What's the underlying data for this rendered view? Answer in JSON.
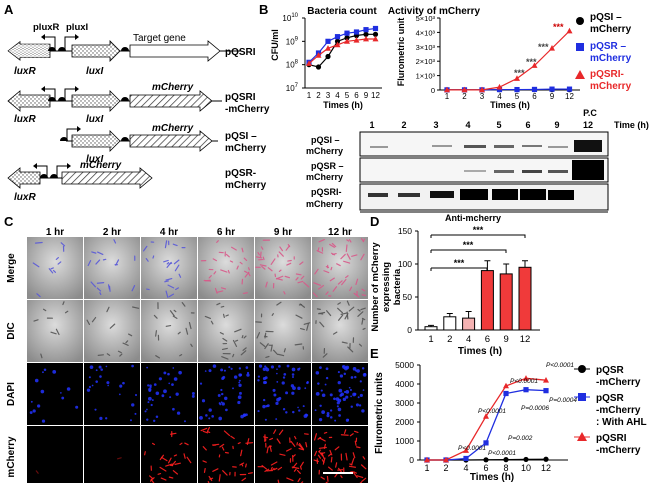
{
  "panel_letters": {
    "a": "A",
    "b": "B",
    "c": "C",
    "d": "D",
    "e": "E"
  },
  "panel_a": {
    "constructs": [
      {
        "label": "pQSRI",
        "genes": [
          "luxR",
          "luxI",
          "Target gene"
        ],
        "promoters": [
          "pluxR",
          "pluxI"
        ]
      },
      {
        "label": "pQSRI\n-mCherry",
        "genes": [
          "luxR",
          "luxI",
          "mCherry"
        ]
      },
      {
        "label": "pQSI –\nmCherry",
        "genes": [
          "luxI",
          "mCherry"
        ]
      },
      {
        "label": "pQSR-\nmCherry",
        "genes": [
          "luxR",
          "mCherry"
        ]
      }
    ],
    "text": {
      "pluxR": "pluxR",
      "pluxI": "pluxI",
      "luxR": "luxR",
      "luxI": "luxI",
      "target": "Target gene",
      "mcherry": "mCherry",
      "c1": "pQSRI",
      "c2a": "pQSRI",
      "c2b": "-mCherry",
      "c3a": "pQSI –",
      "c3b": "mCherry",
      "c4a": "pQSR-",
      "c4b": "mCherry"
    }
  },
  "panel_b": {
    "bacteria_title": "Bacteria count",
    "bacteria_ylabel": "CFU/ml",
    "activity_title": "Activity of mCherry",
    "activity_ylabel": "Flurometric unit",
    "xlabel": "Times (h)",
    "legend": [
      "pQSI –\nmCherry",
      "pQSR –\nmCherry",
      "pQSRI-\nmCherry"
    ],
    "legend_lines": {
      "l1a": "pQSI –",
      "l1b": "mCherry",
      "l2a": "pQSR –",
      "l2b": "mCherry",
      "l3a": "pQSRI-",
      "l3b": "mCherry"
    },
    "blot_lanes": [
      "1",
      "2",
      "3",
      "4",
      "5",
      "6",
      "9",
      "12",
      "P.C"
    ],
    "blot_time_label": "Time (h)",
    "blot_rows": [
      {
        "a": "pQSI –",
        "b": "mCherry"
      },
      {
        "a": "pQSR –",
        "b": "mCherry"
      },
      {
        "a": "pQSRI-",
        "b": "mCherry"
      }
    ],
    "blot_antibody": "Anti-mcherry",
    "sig": "***"
  },
  "panel_c": {
    "columns": [
      "1 hr",
      "2 hr",
      "4 hr",
      "6 hr",
      "9 hr",
      "12 hr"
    ],
    "rows": [
      "Merge",
      "DIC",
      "DAPI",
      "mCherry"
    ]
  },
  "panel_d": {
    "ylabel_lines": [
      "Number of mCherry",
      "expressing",
      "bacteria"
    ],
    "xlabel": "Times (h)",
    "sig": [
      "***",
      "***",
      "***"
    ]
  },
  "panel_e": {
    "ylabel": "Flurometric units",
    "xlabel": "Times (h)",
    "legend_lines": {
      "l1a": "pQSR",
      "l1b": "-mCherry",
      "l2a": "pQSR",
      "l2b": "-mCherry",
      "l2c": ": With AHL",
      "l3a": "pQSRI",
      "l3b": "-mCherry"
    },
    "pvalues": [
      "P<0.0001",
      "P<0.0001",
      "P<0.0001",
      "P=0.0006",
      "P=0.0004",
      "P=0.002",
      "P<0.0001",
      "P<0.0001"
    ]
  },
  "colors": {
    "black": "#000000",
    "blue": "#1f2ee0",
    "red": "#e8282a",
    "bar_red": "#f03a3a",
    "bar_pink": "#f5b3b3"
  },
  "chart_data": [
    {
      "type": "line",
      "title": "Bacteria count",
      "xlabel": "Times (h)",
      "ylabel": "CFU/ml",
      "categories": [
        "1",
        "2",
        "3",
        "4",
        "5",
        "6",
        "9",
        "12"
      ],
      "yscale": "log",
      "ylim_exp": [
        7,
        10
      ],
      "series": [
        {
          "name": "pQSI –mCherry",
          "color": "#000000",
          "log10_values": [
            8.0,
            7.9,
            8.35,
            9.0,
            9.15,
            9.25,
            9.3,
            9.3
          ]
        },
        {
          "name": "pQSR –mCherry",
          "color": "#1f2ee0",
          "log10_values": [
            8.1,
            8.5,
            9.0,
            9.2,
            9.35,
            9.4,
            9.5,
            9.55
          ]
        },
        {
          "name": "pQSRI-mCherry",
          "color": "#e8282a",
          "log10_values": [
            8.05,
            8.4,
            8.7,
            8.85,
            9.0,
            9.05,
            9.1,
            9.1
          ]
        }
      ]
    },
    {
      "type": "line",
      "title": "Activity of mCherry",
      "xlabel": "Times (h)",
      "ylabel": "Flurometric unit",
      "categories": [
        "1",
        "2",
        "3",
        "4",
        "5",
        "6",
        "9",
        "12"
      ],
      "yticks": [
        "0",
        "1×10³",
        "2×10³",
        "3×10³",
        "4×10³",
        "5×10³"
      ],
      "ylim": [
        0,
        5000
      ],
      "series": [
        {
          "name": "pQSI –mCherry",
          "color": "#000000",
          "values": [
            10,
            10,
            10,
            20,
            20,
            20,
            20,
            20
          ]
        },
        {
          "name": "pQSR –mCherry",
          "color": "#1f2ee0",
          "values": [
            10,
            10,
            10,
            30,
            30,
            40,
            60,
            60
          ]
        },
        {
          "name": "pQSRI-mCherry",
          "color": "#e8282a",
          "values": [
            10,
            10,
            10,
            200,
            800,
            1700,
            2900,
            4100
          ]
        }
      ]
    },
    {
      "type": "bar",
      "ylabel": "Number of mCherry expressing bacteria",
      "xlabel": "Times (h)",
      "categories": [
        "1",
        "2",
        "4",
        "6",
        "9",
        "12"
      ],
      "values": [
        5,
        20,
        18,
        90,
        85,
        95
      ],
      "errors": [
        2,
        5,
        10,
        15,
        15,
        10
      ],
      "yticks": [
        "0",
        "50",
        "100",
        "150"
      ],
      "ylim": [
        0,
        150
      ]
    },
    {
      "type": "line",
      "xlabel": "Times (h)",
      "ylabel": "Flurometric units",
      "categories": [
        "1",
        "2",
        "4",
        "6",
        "8",
        "10",
        "12"
      ],
      "yticks": [
        "0",
        "1000",
        "2000",
        "3000",
        "4000",
        "5000"
      ],
      "ylim": [
        0,
        5000
      ],
      "series": [
        {
          "name": "pQSR -mCherry",
          "color": "#000000",
          "values": [
            0,
            0,
            0,
            10,
            20,
            30,
            40
          ]
        },
        {
          "name": "pQSR -mCherry : With AHL",
          "color": "#1f2ee0",
          "values": [
            0,
            0,
            80,
            900,
            3500,
            3700,
            3650
          ]
        },
        {
          "name": "pQSRI -mCherry",
          "color": "#e8282a",
          "values": [
            0,
            0,
            500,
            2300,
            3900,
            4300,
            4200
          ]
        }
      ]
    }
  ]
}
